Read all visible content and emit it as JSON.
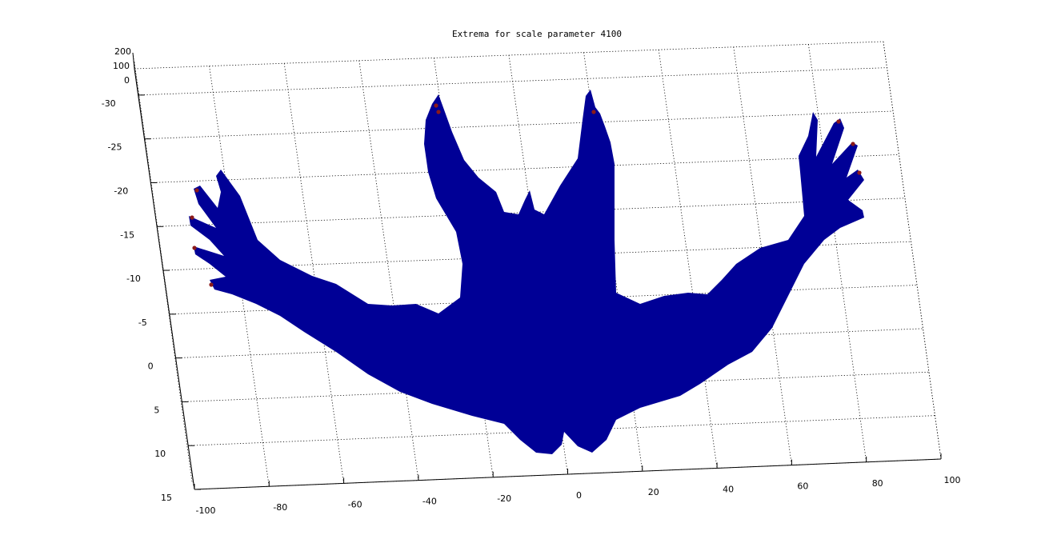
{
  "chart_data": {
    "type": "surface",
    "title": "Extrema for scale parameter  4100",
    "xlabel": "",
    "ylabel": "",
    "zlabel": "",
    "x_ticks": [
      -100,
      -80,
      -60,
      -40,
      -20,
      0,
      20,
      40,
      60,
      80,
      100
    ],
    "y_ticks": [
      15,
      10,
      5,
      0,
      -5,
      -10,
      -15,
      -20,
      -25,
      -30
    ],
    "z_ticks": [
      0,
      100,
      200
    ],
    "xlim": [
      -100,
      100
    ],
    "ylim": [
      -33,
      15
    ],
    "zlim": [
      0,
      200
    ],
    "grid": true,
    "surface_color": "#000096",
    "extrema_color": "#8b1a1a",
    "extrema_count": 10
  }
}
